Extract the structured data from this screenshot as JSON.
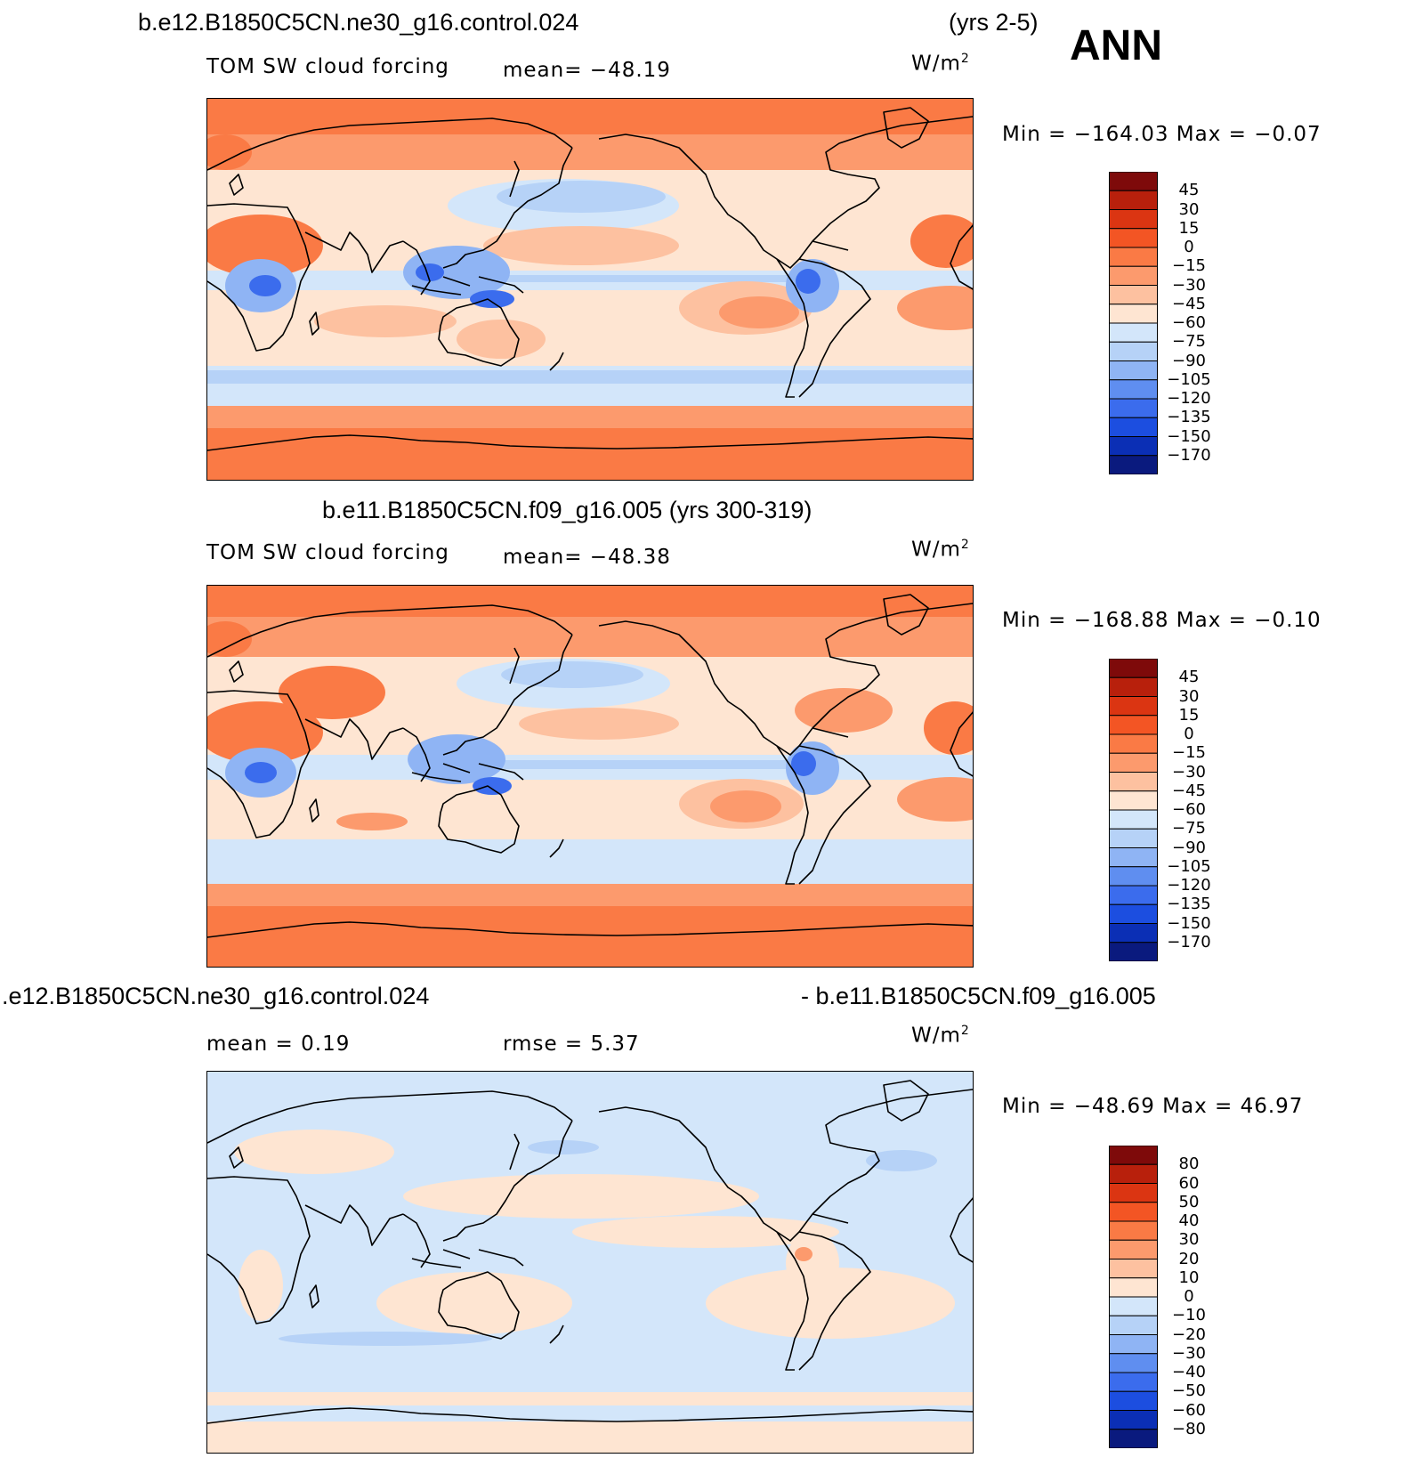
{
  "season": "ANN",
  "panels": [
    {
      "case_title": "b.e12.B1850C5CN.ne30_g16.control.024",
      "years": "(yrs 2-5)",
      "variable": "TOM SW cloud forcing",
      "stat1": "mean=  −48.19",
      "units": "W/m",
      "units_exp": "2",
      "minmax": "Min  =  −164.03  Max  =    −0.07",
      "levels": [
        "45",
        "30",
        "15",
        "0",
        "−15",
        "−30",
        "−45",
        "−60",
        "−75",
        "−90",
        "−105",
        "−120",
        "−135",
        "−150",
        "−170"
      ],
      "colors": [
        "#7e0a0a",
        "#b8200c",
        "#db3512",
        "#f35524",
        "#fa7a45",
        "#fc9a6d",
        "#fdc1a0",
        "#fee5d2",
        "#d3e6fa",
        "#b6d2f7",
        "#8fb4f4",
        "#5f8ef0",
        "#3b6ced",
        "#1c4ee0",
        "#0b2fb5",
        "#0a1a7e"
      ]
    },
    {
      "case_title": "b.e11.B1850C5CN.f09_g16.005 (yrs 300-319)",
      "variable": "TOM SW cloud forcing",
      "stat1": "mean=  −48.38",
      "units": "W/m",
      "units_exp": "2",
      "minmax": "Min  =  −168.88  Max  =    −0.10",
      "levels": [
        "45",
        "30",
        "15",
        "0",
        "−15",
        "−30",
        "−45",
        "−60",
        "−75",
        "−90",
        "−105",
        "−120",
        "−135",
        "−150",
        "−170"
      ],
      "colors": [
        "#7e0a0a",
        "#b8200c",
        "#db3512",
        "#f35524",
        "#fa7a45",
        "#fc9a6d",
        "#fdc1a0",
        "#fee5d2",
        "#d3e6fa",
        "#b6d2f7",
        "#8fb4f4",
        "#5f8ef0",
        "#3b6ced",
        "#1c4ee0",
        "#0b2fb5",
        "#0a1a7e"
      ]
    },
    {
      "case_left": ".e12.B1850C5CN.ne30_g16.control.024",
      "case_right": "- b.e11.B1850C5CN.f09_g16.005",
      "stat1": "mean  =     0.19",
      "stat2": "rmse  =     5.37",
      "units": "W/m",
      "units_exp": "2",
      "minmax": "Min  =  −48.69  Max  =    46.97",
      "levels": [
        "80",
        "60",
        "50",
        "40",
        "30",
        "20",
        "10",
        "0",
        "−10",
        "−20",
        "−30",
        "−40",
        "−50",
        "−60",
        "−80"
      ],
      "colors": [
        "#7e0a0a",
        "#b8200c",
        "#db3512",
        "#f35524",
        "#fa7a45",
        "#fc9a6d",
        "#fdc1a0",
        "#fee5d2",
        "#d3e6fa",
        "#b6d2f7",
        "#8fb4f4",
        "#5f8ef0",
        "#3b6ced",
        "#1c4ee0",
        "#0b2fb5",
        "#0a1a7e"
      ]
    }
  ]
}
